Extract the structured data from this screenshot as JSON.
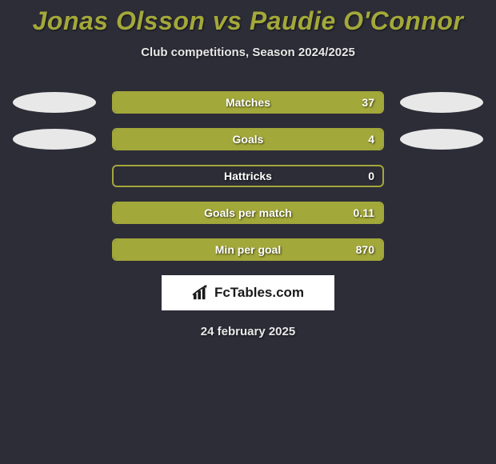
{
  "header": {
    "title": "Jonas Olsson vs Paudie O'Connor",
    "subtitle": "Club competitions, Season 2024/2025",
    "title_color": "#a3a83a",
    "title_fontsize": 32
  },
  "background_color": "#2d2d38",
  "bar_border_color": "#a3a83a",
  "bar_fill_color": "#a3a83a",
  "ellipse_color": "#e8e8e8",
  "text_color": "#ffffff",
  "rows": [
    {
      "label": "Matches",
      "value": "37",
      "fill_pct": 100,
      "show_ellipses": true
    },
    {
      "label": "Goals",
      "value": "4",
      "fill_pct": 100,
      "show_ellipses": true
    },
    {
      "label": "Hattricks",
      "value": "0",
      "fill_pct": 0,
      "show_ellipses": false
    },
    {
      "label": "Goals per match",
      "value": "0.11",
      "fill_pct": 100,
      "show_ellipses": false
    },
    {
      "label": "Min per goal",
      "value": "870",
      "fill_pct": 100,
      "show_ellipses": false
    }
  ],
  "brand": {
    "text": "FcTables.com",
    "box_bg": "#ffffff",
    "icon_name": "bar-chart-icon"
  },
  "footer": {
    "date": "24 february 2025"
  }
}
